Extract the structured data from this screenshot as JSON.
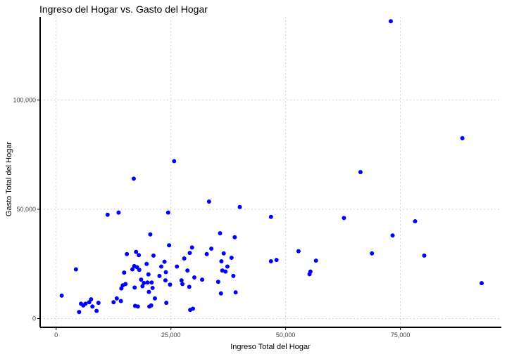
{
  "chart_data": {
    "type": "scatter",
    "title": "Ingreso del Hogar vs. Gasto del Hogar",
    "xlabel": "Ingreso Total del Hogar",
    "ylabel": "Gasto Total del Hogar",
    "xlim": [
      -3500,
      97000
    ],
    "ylim": [
      -4000,
      138000
    ],
    "xticks": [
      0,
      25000,
      50000,
      75000
    ],
    "xtick_labels": [
      "0",
      "25,000",
      "50,000",
      "75,000"
    ],
    "yticks": [
      0,
      50000,
      100000
    ],
    "ytick_labels": [
      "0",
      "50,000",
      "100,000"
    ],
    "grid": true,
    "colors": {
      "point": "#0000ff",
      "grid": "#cccccc",
      "axis": "#000000"
    },
    "points": [
      {
        "x": 1200,
        "y": 10500
      },
      {
        "x": 4300,
        "y": 22500
      },
      {
        "x": 5000,
        "y": 3000
      },
      {
        "x": 5400,
        "y": 6800
      },
      {
        "x": 5900,
        "y": 6000
      },
      {
        "x": 6400,
        "y": 6800
      },
      {
        "x": 7200,
        "y": 7500
      },
      {
        "x": 7600,
        "y": 8800
      },
      {
        "x": 7900,
        "y": 5500
      },
      {
        "x": 8800,
        "y": 3500
      },
      {
        "x": 9200,
        "y": 7200
      },
      {
        "x": 11200,
        "y": 47500
      },
      {
        "x": 12500,
        "y": 7500
      },
      {
        "x": 13200,
        "y": 9200
      },
      {
        "x": 13600,
        "y": 48500
      },
      {
        "x": 14100,
        "y": 8000
      },
      {
        "x": 14200,
        "y": 13800
      },
      {
        "x": 14500,
        "y": 15200
      },
      {
        "x": 14800,
        "y": 21000
      },
      {
        "x": 15100,
        "y": 15800
      },
      {
        "x": 15400,
        "y": 29500
      },
      {
        "x": 16600,
        "y": 22500
      },
      {
        "x": 16900,
        "y": 64000
      },
      {
        "x": 17000,
        "y": 24000
      },
      {
        "x": 17100,
        "y": 14200
      },
      {
        "x": 17200,
        "y": 5800
      },
      {
        "x": 17400,
        "y": 30500
      },
      {
        "x": 17600,
        "y": 23500
      },
      {
        "x": 17800,
        "y": 5500
      },
      {
        "x": 18000,
        "y": 29000
      },
      {
        "x": 18100,
        "y": 22300
      },
      {
        "x": 18500,
        "y": 17800
      },
      {
        "x": 18800,
        "y": 14800
      },
      {
        "x": 19100,
        "y": 16300
      },
      {
        "x": 19700,
        "y": 25000
      },
      {
        "x": 19900,
        "y": 16500
      },
      {
        "x": 20100,
        "y": 20200
      },
      {
        "x": 20200,
        "y": 12200
      },
      {
        "x": 20300,
        "y": 5500
      },
      {
        "x": 20500,
        "y": 38500
      },
      {
        "x": 20700,
        "y": 6000
      },
      {
        "x": 20800,
        "y": 16500
      },
      {
        "x": 21000,
        "y": 14000
      },
      {
        "x": 21200,
        "y": 28800
      },
      {
        "x": 21500,
        "y": 9200
      },
      {
        "x": 22500,
        "y": 19500
      },
      {
        "x": 22900,
        "y": 23800
      },
      {
        "x": 23600,
        "y": 26000
      },
      {
        "x": 23800,
        "y": 17500
      },
      {
        "x": 23900,
        "y": 21200
      },
      {
        "x": 24000,
        "y": 7200
      },
      {
        "x": 24400,
        "y": 48500
      },
      {
        "x": 24600,
        "y": 33500
      },
      {
        "x": 24800,
        "y": 15500
      },
      {
        "x": 25700,
        "y": 72000
      },
      {
        "x": 26300,
        "y": 23800
      },
      {
        "x": 27300,
        "y": 17500
      },
      {
        "x": 27500,
        "y": 15800
      },
      {
        "x": 27900,
        "y": 27500
      },
      {
        "x": 28600,
        "y": 22000
      },
      {
        "x": 29000,
        "y": 14500
      },
      {
        "x": 29100,
        "y": 30000
      },
      {
        "x": 29200,
        "y": 4000
      },
      {
        "x": 29600,
        "y": 32500
      },
      {
        "x": 29800,
        "y": 4500
      },
      {
        "x": 30100,
        "y": 18800
      },
      {
        "x": 31800,
        "y": 17800
      },
      {
        "x": 32800,
        "y": 29500
      },
      {
        "x": 33300,
        "y": 53500
      },
      {
        "x": 33800,
        "y": 32000
      },
      {
        "x": 35300,
        "y": 16800
      },
      {
        "x": 35700,
        "y": 39000
      },
      {
        "x": 35900,
        "y": 11500
      },
      {
        "x": 36000,
        "y": 26200
      },
      {
        "x": 36200,
        "y": 22000
      },
      {
        "x": 36500,
        "y": 29800
      },
      {
        "x": 36900,
        "y": 21500
      },
      {
        "x": 37300,
        "y": 23800
      },
      {
        "x": 38200,
        "y": 27800
      },
      {
        "x": 38600,
        "y": 19500
      },
      {
        "x": 38900,
        "y": 37200
      },
      {
        "x": 39100,
        "y": 12000
      },
      {
        "x": 40000,
        "y": 51000
      },
      {
        "x": 46800,
        "y": 46500
      },
      {
        "x": 46800,
        "y": 26200
      },
      {
        "x": 48000,
        "y": 26800
      },
      {
        "x": 52800,
        "y": 30800
      },
      {
        "x": 55200,
        "y": 20300
      },
      {
        "x": 55400,
        "y": 21500
      },
      {
        "x": 56600,
        "y": 26500
      },
      {
        "x": 62700,
        "y": 46000
      },
      {
        "x": 66300,
        "y": 67000
      },
      {
        "x": 68800,
        "y": 29800
      },
      {
        "x": 72900,
        "y": 136000
      },
      {
        "x": 73300,
        "y": 38000
      },
      {
        "x": 78200,
        "y": 44500
      },
      {
        "x": 80200,
        "y": 28800
      },
      {
        "x": 88500,
        "y": 82500
      },
      {
        "x": 92700,
        "y": 16200
      }
    ]
  }
}
